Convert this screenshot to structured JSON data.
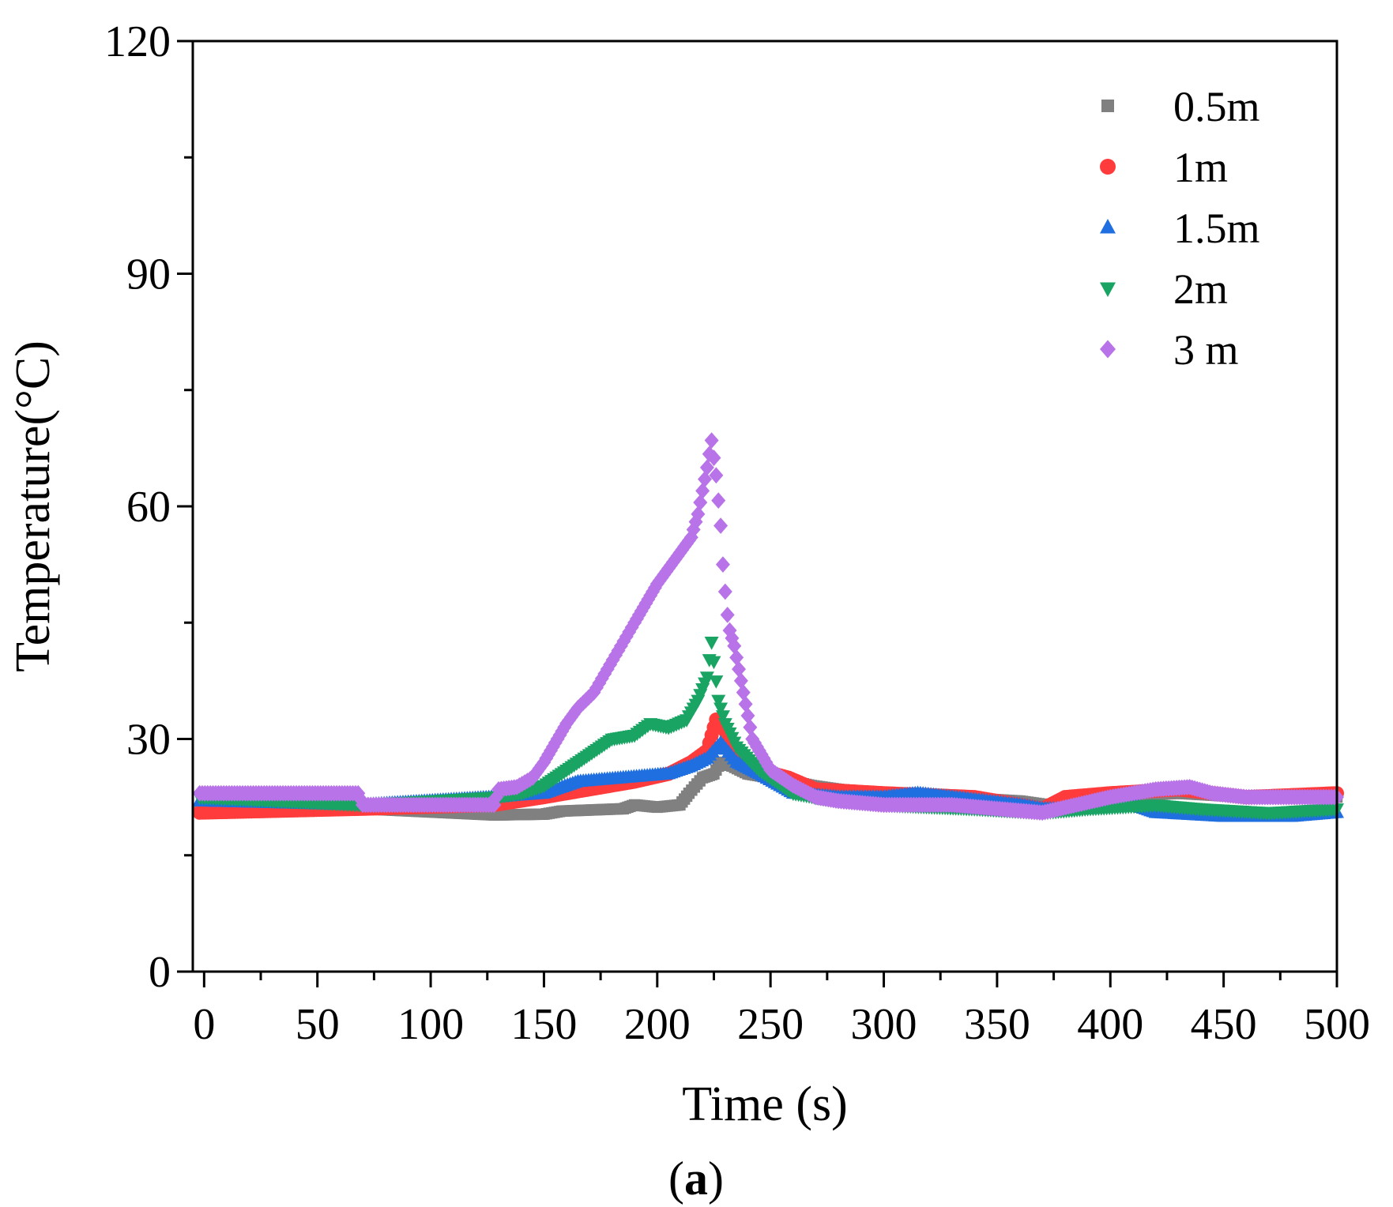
{
  "chart_data": {
    "type": "scatter",
    "title": "",
    "xlabel": "Time (s)",
    "ylabel": "Temperature(°C)",
    "xlim": [
      -5,
      500
    ],
    "ylim": [
      0,
      120
    ],
    "xticks": [
      0,
      50,
      100,
      150,
      200,
      250,
      300,
      350,
      400,
      450,
      500
    ],
    "yticks": [
      0,
      30,
      60,
      90,
      120
    ],
    "legend_position": "top-right",
    "caption": {
      "open": "(",
      "letter": "a",
      "close": ")"
    },
    "series": [
      {
        "name": "0.5m",
        "marker": "square",
        "color": "#808080",
        "points": [
          [
            -2,
            21
          ],
          [
            70,
            21
          ],
          [
            128,
            20.2
          ],
          [
            150,
            20.3
          ],
          [
            158,
            20.7
          ],
          [
            185,
            21
          ],
          [
            190,
            21.5
          ],
          [
            200,
            21.2
          ],
          [
            210,
            21.5
          ],
          [
            214,
            23
          ],
          [
            220,
            25
          ],
          [
            225,
            25.5
          ],
          [
            228,
            27
          ],
          [
            233,
            26.5
          ],
          [
            240,
            25.5
          ],
          [
            250,
            25
          ],
          [
            260,
            24.5
          ],
          [
            268,
            24
          ],
          [
            280,
            23.5
          ],
          [
            300,
            23
          ],
          [
            330,
            22.5
          ],
          [
            360,
            22
          ],
          [
            372,
            21.5
          ],
          [
            385,
            22
          ],
          [
            400,
            22.5
          ],
          [
            430,
            23
          ],
          [
            460,
            22.5
          ],
          [
            500,
            22.5
          ]
        ]
      },
      {
        "name": "1m",
        "marker": "circle",
        "color": "#ff3b3b",
        "points": [
          [
            -2,
            20.5
          ],
          [
            70,
            21
          ],
          [
            128,
            21.5
          ],
          [
            150,
            22.5
          ],
          [
            170,
            23.5
          ],
          [
            190,
            24.5
          ],
          [
            205,
            25.5
          ],
          [
            215,
            27
          ],
          [
            222,
            28.5
          ],
          [
            226,
            32.5
          ],
          [
            230,
            31
          ],
          [
            235,
            28
          ],
          [
            245,
            26
          ],
          [
            258,
            25
          ],
          [
            270,
            23.5
          ],
          [
            300,
            23
          ],
          [
            340,
            22.5
          ],
          [
            370,
            21
          ],
          [
            380,
            22.5
          ],
          [
            400,
            23
          ],
          [
            430,
            23.5
          ],
          [
            460,
            22.5
          ],
          [
            500,
            23
          ]
        ]
      },
      {
        "name": "1.5m",
        "marker": "triangle-up",
        "color": "#1f6fe0",
        "points": [
          [
            -2,
            22
          ],
          [
            70,
            21.5
          ],
          [
            128,
            22.5
          ],
          [
            150,
            23
          ],
          [
            165,
            24.5
          ],
          [
            185,
            25
          ],
          [
            205,
            25.5
          ],
          [
            215,
            26.5
          ],
          [
            222,
            27.5
          ],
          [
            228,
            29.5
          ],
          [
            235,
            27
          ],
          [
            245,
            25.5
          ],
          [
            260,
            23
          ],
          [
            280,
            22.5
          ],
          [
            300,
            22.5
          ],
          [
            315,
            23
          ],
          [
            330,
            22.5
          ],
          [
            360,
            21.5
          ],
          [
            370,
            21
          ],
          [
            390,
            21
          ],
          [
            410,
            21.5
          ],
          [
            420,
            20.5
          ],
          [
            450,
            20
          ],
          [
            480,
            20
          ],
          [
            500,
            20.5
          ]
        ]
      },
      {
        "name": "2m",
        "marker": "triangle-down",
        "color": "#1aa463",
        "points": [
          [
            -2,
            22.5
          ],
          [
            70,
            21.5
          ],
          [
            128,
            22.5
          ],
          [
            140,
            23
          ],
          [
            150,
            24
          ],
          [
            160,
            26
          ],
          [
            170,
            28
          ],
          [
            180,
            30
          ],
          [
            190,
            30.5
          ],
          [
            197,
            32
          ],
          [
            205,
            31.5
          ],
          [
            213,
            32.5
          ],
          [
            218,
            35
          ],
          [
            222,
            38
          ],
          [
            224,
            42.5
          ],
          [
            227,
            35
          ],
          [
            230,
            32
          ],
          [
            235,
            29
          ],
          [
            245,
            26
          ],
          [
            260,
            23
          ],
          [
            280,
            22
          ],
          [
            300,
            21.5
          ],
          [
            340,
            21
          ],
          [
            370,
            20.5
          ],
          [
            390,
            21
          ],
          [
            420,
            21.5
          ],
          [
            440,
            21
          ],
          [
            470,
            20.5
          ],
          [
            500,
            21
          ]
        ]
      },
      {
        "name": "3 m",
        "marker": "diamond",
        "color": "#b873e8",
        "points": [
          [
            -2,
            23
          ],
          [
            68,
            23
          ],
          [
            70,
            21.5
          ],
          [
            128,
            21.5
          ],
          [
            130,
            23.5
          ],
          [
            138,
            23.8
          ],
          [
            145,
            25
          ],
          [
            150,
            27
          ],
          [
            155,
            29.5
          ],
          [
            160,
            32
          ],
          [
            165,
            34
          ],
          [
            172,
            36
          ],
          [
            178,
            39
          ],
          [
            184,
            42
          ],
          [
            190,
            45
          ],
          [
            195,
            47.5
          ],
          [
            200,
            50
          ],
          [
            205,
            52
          ],
          [
            210,
            54
          ],
          [
            215,
            56
          ],
          [
            218,
            59
          ],
          [
            220,
            62
          ],
          [
            222,
            65
          ],
          [
            224,
            68.5
          ],
          [
            226,
            64
          ],
          [
            228,
            57.5
          ],
          [
            229,
            52.5
          ],
          [
            230,
            49
          ],
          [
            231,
            46
          ],
          [
            232,
            44
          ],
          [
            234,
            42
          ],
          [
            236,
            39
          ],
          [
            238,
            36
          ],
          [
            240,
            33
          ],
          [
            242,
            30
          ],
          [
            246,
            28
          ],
          [
            250,
            26
          ],
          [
            255,
            25
          ],
          [
            260,
            24
          ],
          [
            270,
            22.5
          ],
          [
            280,
            22
          ],
          [
            300,
            21.5
          ],
          [
            330,
            21.5
          ],
          [
            350,
            21
          ],
          [
            370,
            20.5
          ],
          [
            385,
            21.5
          ],
          [
            400,
            22.5
          ],
          [
            420,
            23.5
          ],
          [
            435,
            23.8
          ],
          [
            445,
            23
          ],
          [
            460,
            22.5
          ],
          [
            480,
            22.5
          ],
          [
            500,
            22.5
          ]
        ]
      }
    ]
  }
}
